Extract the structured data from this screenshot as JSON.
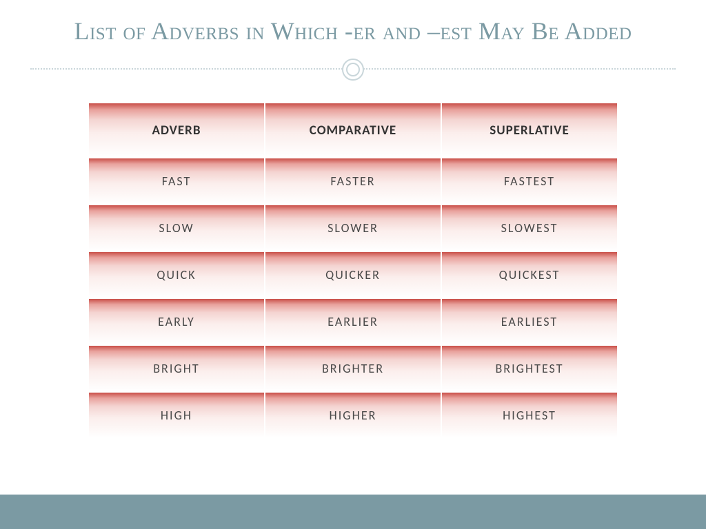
{
  "title": "List of Adverbs in Which -er and –est May Be Added",
  "headers": {
    "adverb": "ADVERB",
    "comparative": "COMPARATIVE",
    "superlative": "SUPERLATIVE"
  },
  "rows": [
    {
      "adverb": "FAST",
      "comparative": "FASTER",
      "superlative": "FASTEST"
    },
    {
      "adverb": "SLOW",
      "comparative": "SLOWER",
      "superlative": "SLOWEST"
    },
    {
      "adverb": "QUICK",
      "comparative": "QUICKER",
      "superlative": "QUICKEST"
    },
    {
      "adverb": "EARLY",
      "comparative": "EARLIER",
      "superlative": "EARLIEST"
    },
    {
      "adverb": "BRIGHT",
      "comparative": "BRIGHTER",
      "superlative": "BRIGHTEST"
    },
    {
      "adverb": "HIGH",
      "comparative": "HIGHER",
      "superlative": "HIGHEST"
    }
  ],
  "style": {
    "title_color": "#7b9aa3",
    "title_fontsize": 36,
    "divider_color": "#c9d6da",
    "cell_gradient_from": "#c94f48",
    "cell_gradient_mid1": "#e8a19c",
    "cell_gradient_mid2": "#f4d4d1",
    "cell_gradient_mid3": "#fbeeec",
    "cell_gradient_to": "#ffffff",
    "cell_text_color": "#4a4a4a",
    "header_text_color": "#333333",
    "footer_color": "#7b9aa3",
    "header_row_height": 78,
    "data_row_height": 66,
    "cell_fontsize": 18,
    "header_fontsize": 19,
    "columns": 3,
    "row_border_color": "#ffffff"
  },
  "type": "table"
}
